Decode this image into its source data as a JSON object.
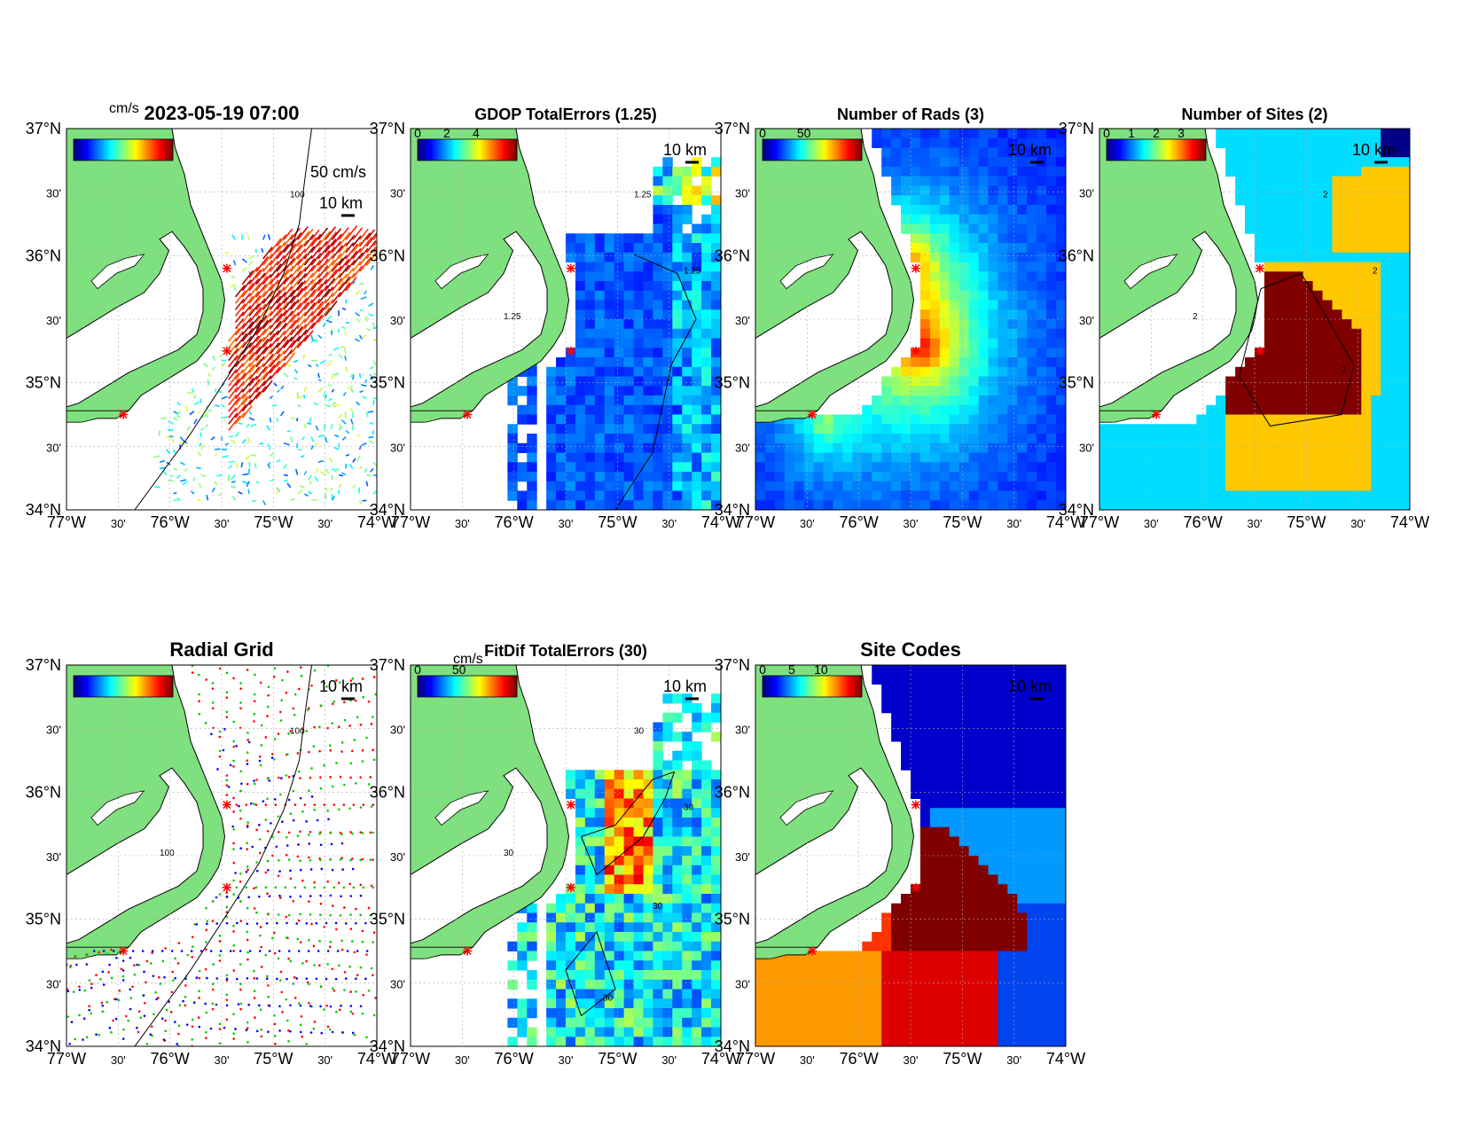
{
  "figure": {
    "panels": [
      {
        "id": "currents",
        "title": "2023-05-19 07:00",
        "colorbar_unit": "cm/s",
        "colorbar_ticks": [],
        "scale_arrow_label": "50 cm/s",
        "scale_km_label": "10 km",
        "contour_labels": [
          "100"
        ],
        "field": "vectors"
      },
      {
        "id": "gdop",
        "title": "GDOP TotalErrors (1.25)",
        "colorbar_unit": "",
        "colorbar_ticks": [
          "0",
          "2",
          "4"
        ],
        "scale_km_label": "10 km",
        "contour_labels": [
          "1.25",
          "1.25",
          "1.25"
        ],
        "field": "gdop"
      },
      {
        "id": "num-rads",
        "title": "Number of Rads (3)",
        "colorbar_unit": "",
        "colorbar_ticks": [
          "0",
          "50"
        ],
        "scale_km_label": "10 km",
        "contour_labels": [],
        "field": "rads"
      },
      {
        "id": "num-sites",
        "title": "Number of Sites (2)",
        "colorbar_unit": "",
        "colorbar_ticks": [
          "0",
          "1",
          "2",
          "3"
        ],
        "scale_km_label": "10 km",
        "contour_labels": [
          "2",
          "2",
          "2",
          "2"
        ],
        "field": "sites"
      },
      {
        "id": "radial-grid",
        "title": "Radial Grid",
        "colorbar_unit": "",
        "colorbar_ticks": [],
        "scale_km_label": "10 km",
        "contour_labels": [
          "100",
          "100"
        ],
        "field": "radial"
      },
      {
        "id": "fitdif",
        "title": "FitDif TotalErrors (30)",
        "colorbar_unit": "cm/s",
        "colorbar_ticks": [
          "0",
          "50"
        ],
        "scale_km_label": "10 km",
        "contour_labels": [
          "30",
          "30",
          "30",
          "30",
          "30"
        ],
        "field": "fitdif"
      },
      {
        "id": "site-codes",
        "title": "Site Codes",
        "colorbar_unit": "",
        "colorbar_ticks": [
          "0",
          "5",
          "10"
        ],
        "scale_km_label": "10 km",
        "contour_labels": [],
        "field": "codes"
      }
    ],
    "axes": {
      "lon_ticks": [
        "77°W",
        "30'",
        "76°W",
        "30'",
        "75°W",
        "30'",
        "74°W"
      ],
      "lat_ticks": [
        "37°N",
        "30'",
        "36°N",
        "30'",
        "35°N",
        "30'",
        "34°N"
      ],
      "lon_range": [
        -77,
        -74
      ],
      "lat_range": [
        34,
        37
      ]
    },
    "radar_sites_lonlat": [
      [
        -75.45,
        35.9
      ],
      [
        -75.45,
        35.25
      ],
      [
        -76.45,
        34.75
      ]
    ],
    "colors": {
      "land": "#7fe07f",
      "site_marker": "#ff0000",
      "grid_site_colors": [
        "#ff0000",
        "#00cc00",
        "#0000ff"
      ]
    }
  }
}
